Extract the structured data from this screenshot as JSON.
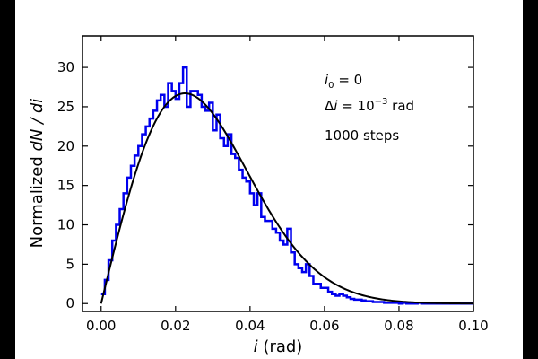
{
  "chart_data": {
    "type": "bar",
    "style": "step-histogram-with-fit-curve",
    "xlabel_italic": "i",
    "xlabel_unit": "(rad)",
    "ylabel_prefix": "Normalized ",
    "ylabel_math": "dN / di",
    "xlim": [
      -0.005,
      0.1
    ],
    "ylim": [
      -1,
      34
    ],
    "xticks": [
      0.0,
      0.02,
      0.04,
      0.06,
      0.08,
      0.1
    ],
    "xtick_labels": [
      "0.00",
      "0.02",
      "0.04",
      "0.06",
      "0.08",
      "0.10"
    ],
    "yticks": [
      0,
      5,
      10,
      15,
      20,
      25,
      30
    ],
    "ytick_labels": [
      "0",
      "5",
      "10",
      "15",
      "20",
      "25",
      "30"
    ],
    "grid": false,
    "annotations": {
      "line1_var": "i",
      "line1_sub": "0",
      "line1_rest": " = 0",
      "line2_prefix": "Δ",
      "line2_var": "i",
      "line2_mid": " = 10",
      "line2_exp": "−3",
      "line2_unit": " rad",
      "line3": "1000 steps"
    },
    "series": [
      {
        "name": "histogram",
        "color": "#0000ee",
        "bin_width": 0.001,
        "bin_start": 0.0,
        "values": [
          1.2,
          3.0,
          5.5,
          8.0,
          10.0,
          12.0,
          14.0,
          16.0,
          17.5,
          18.8,
          20.0,
          21.5,
          22.5,
          23.5,
          24.5,
          25.8,
          26.5,
          25.0,
          28.0,
          27.0,
          26.0,
          28.0,
          30.0,
          25.0,
          27.0,
          27.0,
          26.5,
          25.0,
          24.5,
          25.5,
          22.0,
          24.0,
          21.0,
          20.0,
          21.5,
          19.0,
          18.5,
          17.0,
          16.0,
          15.5,
          14.0,
          12.5,
          14.0,
          11.0,
          10.5,
          10.5,
          9.5,
          9.0,
          8.0,
          7.5,
          9.5,
          6.5,
          5.0,
          4.5,
          4.0,
          5.0,
          3.5,
          2.5,
          2.5,
          2.0,
          2.0,
          1.5,
          1.2,
          1.0,
          1.2,
          1.0,
          0.8,
          0.6,
          0.5,
          0.5,
          0.4,
          0.3,
          0.3,
          0.2,
          0.2,
          0.2,
          0.1,
          0.1,
          0.1,
          0.1,
          0.0,
          0.1,
          0.0,
          0.0,
          0.0,
          0.1,
          0.0,
          0.0,
          0.0,
          0.0,
          0.0,
          0.0,
          0.0,
          0.0,
          0.0,
          0.0,
          0.0,
          0.0,
          0.0,
          0.0
        ]
      },
      {
        "name": "fit",
        "color": "#000000",
        "form": "rayleigh",
        "sigma": 0.0225,
        "peak": 26.7
      }
    ]
  }
}
